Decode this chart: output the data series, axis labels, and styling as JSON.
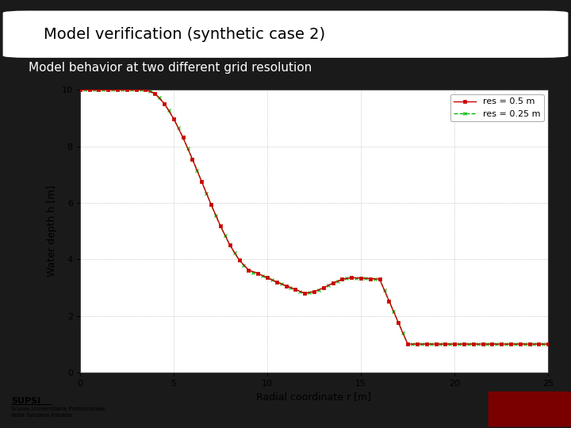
{
  "title": "Model verification (synthetic case 2)",
  "subtitle": "Model behavior at two different grid resolution",
  "xlabel": "Radial coordinate r [m]",
  "ylabel": "Water depth h [m]",
  "xlim": [
    0,
    25
  ],
  "ylim": [
    0,
    10
  ],
  "xticks": [
    0,
    5,
    10,
    15,
    20,
    25
  ],
  "yticks": [
    0,
    2,
    4,
    6,
    8,
    10
  ],
  "bg_color": "#1a1a1a",
  "plot_bg": "#ffffff",
  "title_box_color": "#ffffff",
  "title_text_color": "#000000",
  "subtitle_color": "#ffffff",
  "legend1_label": "res = 0.5 m",
  "legend2_label": "res = 0.25 m",
  "line1_color": "#cc0000",
  "line2_color": "#00bb00",
  "marker1": "s",
  "marker2": "x",
  "footer_text1": "SUPSI",
  "footer_text2": "Scuola Universitaria Professionale\ndella Svizzera italiana"
}
